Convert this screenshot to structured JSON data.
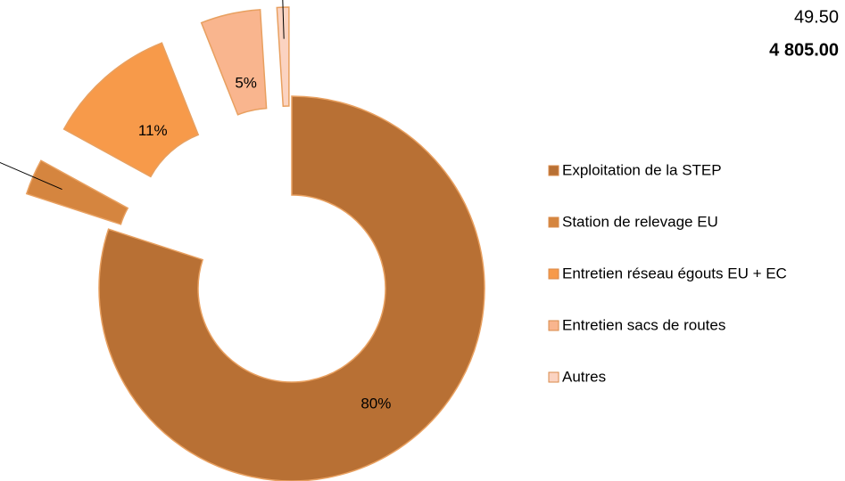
{
  "chart_data": {
    "type": "donut",
    "annotations": [
      "49.50",
      "4 805.00"
    ],
    "categories": [
      "Exploitation de la STEP",
      "Station de relevage EU",
      "Entretien réseau égouts EU + EC",
      "Entretien sacs de routes",
      "Autres"
    ],
    "values": [
      80,
      3,
      11,
      5,
      1
    ],
    "value_labels": [
      "80%",
      "3%",
      "11%",
      "5%",
      "1%"
    ],
    "colors": [
      "#b87034",
      "#d5853f",
      "#f79a4a",
      "#f9b58e",
      "#fbd3c1"
    ],
    "legend": "right"
  }
}
